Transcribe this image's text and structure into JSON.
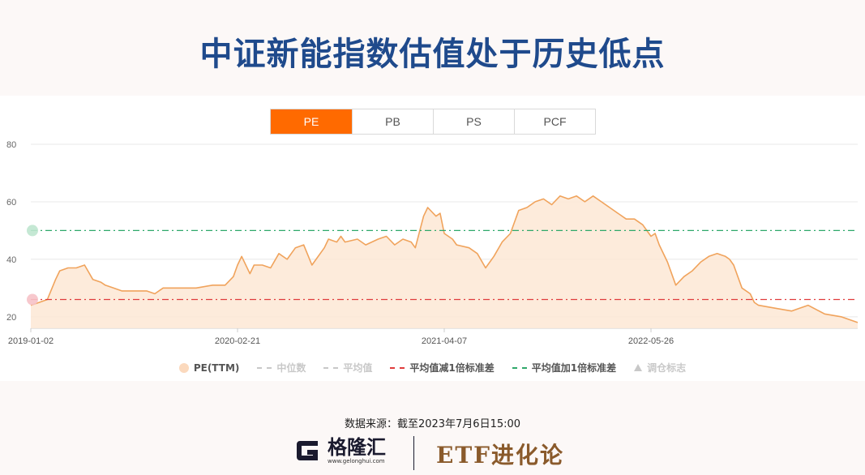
{
  "title": "中证新能指数估值处于历史低点",
  "tabs": [
    {
      "label": "PE",
      "active": true
    },
    {
      "label": "PB",
      "active": false
    },
    {
      "label": "PS",
      "active": false
    },
    {
      "label": "PCF",
      "active": false
    }
  ],
  "chart_data": {
    "type": "area",
    "series_name": "PE(TTM)",
    "ylim": [
      16,
      80
    ],
    "yticks": [
      "80",
      "60",
      "40",
      "20"
    ],
    "xticks": [
      "2019-01-02",
      "2020-02-21",
      "2021-04-07",
      "2022-05-26"
    ],
    "colors": {
      "line": "#f0a35c",
      "fill": "#fde7d5",
      "minus_std": "#e03c3c",
      "plus_std": "#2fa86a",
      "grid": "#e8e8e8"
    },
    "reference_lines": {
      "minus_1std": 26,
      "plus_1std": 50
    },
    "x": [
      0,
      0.01,
      0.02,
      0.03,
      0.035,
      0.045,
      0.055,
      0.065,
      0.075,
      0.085,
      0.09,
      0.1,
      0.11,
      0.12,
      0.13,
      0.14,
      0.15,
      0.16,
      0.18,
      0.2,
      0.22,
      0.235,
      0.245,
      0.25,
      0.255,
      0.265,
      0.27,
      0.28,
      0.29,
      0.3,
      0.31,
      0.32,
      0.33,
      0.34,
      0.345,
      0.355,
      0.36,
      0.37,
      0.375,
      0.38,
      0.395,
      0.405,
      0.42,
      0.43,
      0.44,
      0.45,
      0.46,
      0.465,
      0.475,
      0.48,
      0.49,
      0.495,
      0.5,
      0.51,
      0.515,
      0.53,
      0.54,
      0.55,
      0.56,
      0.57,
      0.58,
      0.59,
      0.6,
      0.61,
      0.62,
      0.63,
      0.64,
      0.65,
      0.66,
      0.67,
      0.68,
      0.69,
      0.7,
      0.71,
      0.72,
      0.73,
      0.74,
      0.75,
      0.755,
      0.76,
      0.77,
      0.78,
      0.79,
      0.8,
      0.81,
      0.82,
      0.83,
      0.84,
      0.845,
      0.85,
      0.86,
      0.87,
      0.875,
      0.88,
      0.9,
      0.92,
      0.94,
      0.96,
      0.98,
      1.0
    ],
    "values": [
      24,
      25,
      26,
      33,
      36,
      37,
      37,
      38,
      33,
      32,
      31,
      30,
      29,
      29,
      29,
      29,
      28,
      30,
      30,
      30,
      31,
      31,
      34,
      38,
      41,
      35,
      38,
      38,
      37,
      42,
      40,
      44,
      45,
      38,
      40,
      44,
      47,
      46,
      48,
      46,
      47,
      45,
      47,
      48,
      45,
      47,
      46,
      44,
      55,
      58,
      55,
      56,
      49,
      47,
      45,
      44,
      42,
      37,
      41,
      46,
      49,
      57,
      58,
      60,
      61,
      59,
      62,
      61,
      62,
      60,
      62,
      60,
      58,
      56,
      54,
      54,
      52,
      48,
      49,
      45,
      39,
      31,
      34,
      36,
      39,
      41,
      42,
      41,
      40,
      38,
      30,
      28,
      25,
      24,
      23,
      22,
      24,
      21,
      20,
      18
    ]
  },
  "legend": [
    {
      "label": "PE(TTM)",
      "active": true,
      "swatch": "dot"
    },
    {
      "label": "中位数",
      "active": false,
      "swatch": "dash"
    },
    {
      "label": "平均值",
      "active": false,
      "swatch": "dash"
    },
    {
      "label": "平均值减1倍标准差",
      "active": true,
      "swatch": "dash-red"
    },
    {
      "label": "平均值加1倍标准差",
      "active": true,
      "swatch": "dash-green"
    },
    {
      "label": "调仓标志",
      "active": false,
      "swatch": "triangle"
    }
  ],
  "source": "数据来源：截至2023年7月6日15:00",
  "footer": {
    "logo_cn": "格隆汇",
    "logo_url": "www.gelonghui.com",
    "brand": "ETF进化论"
  }
}
